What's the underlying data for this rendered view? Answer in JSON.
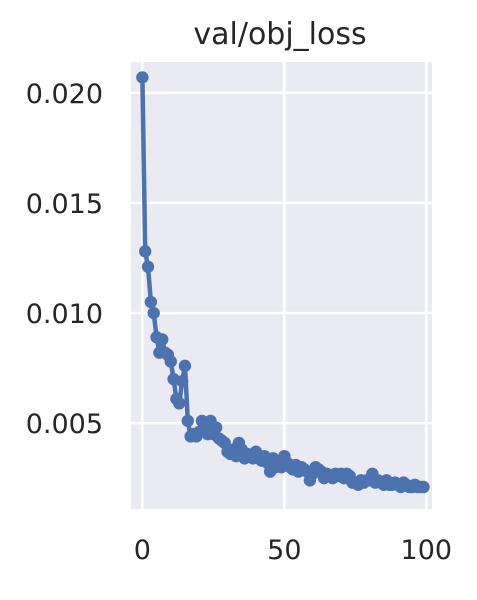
{
  "chart_data": {
    "type": "line",
    "title": "val/obj_loss",
    "xlabel": "",
    "ylabel": "",
    "xlim": [
      -4,
      102
    ],
    "ylim": [
      0.0011,
      0.0214
    ],
    "grid": true,
    "legend": "none",
    "colors": {
      "series": "#4c72b0",
      "plot_background": "#eaeaf2",
      "grid": "#ffffff"
    },
    "x_ticks": [
      0,
      50,
      100
    ],
    "x_tick_labels": [
      "0",
      "50",
      "100"
    ],
    "y_ticks": [
      0.005,
      0.01,
      0.015,
      0.02
    ],
    "y_tick_labels": [
      "0.005",
      "0.010",
      "0.015",
      "0.020"
    ],
    "series": [
      {
        "name": "",
        "x": [
          0,
          1,
          2,
          3,
          4,
          5,
          6,
          7,
          8,
          9,
          10,
          11,
          12,
          13,
          14,
          15,
          16,
          17,
          18,
          19,
          20,
          21,
          22,
          23,
          24,
          25,
          26,
          27,
          28,
          29,
          30,
          31,
          32,
          33,
          34,
          35,
          36,
          37,
          38,
          39,
          40,
          41,
          42,
          43,
          44,
          45,
          46,
          47,
          48,
          49,
          50,
          51,
          52,
          53,
          54,
          55,
          56,
          57,
          58,
          59,
          60,
          61,
          62,
          63,
          64,
          65,
          66,
          67,
          68,
          69,
          70,
          71,
          72,
          73,
          74,
          75,
          76,
          77,
          78,
          79,
          80,
          81,
          82,
          83,
          84,
          85,
          86,
          87,
          88,
          89,
          90,
          91,
          92,
          93,
          94,
          95,
          96,
          97,
          98,
          99
        ],
        "y": [
          0.0207,
          0.0128,
          0.0121,
          0.0105,
          0.01,
          0.0089,
          0.0082,
          0.0088,
          0.0082,
          0.0081,
          0.0078,
          0.007,
          0.0061,
          0.0059,
          0.0069,
          0.0076,
          0.0051,
          0.0044,
          0.0045,
          0.0044,
          0.0046,
          0.0051,
          0.0047,
          0.0045,
          0.0051,
          0.0045,
          0.0048,
          0.0043,
          0.0042,
          0.0041,
          0.0037,
          0.0036,
          0.0038,
          0.0035,
          0.0041,
          0.0038,
          0.0034,
          0.0036,
          0.0035,
          0.0034,
          0.0037,
          0.0034,
          0.0033,
          0.0035,
          0.0032,
          0.0028,
          0.0034,
          0.003,
          0.0031,
          0.003,
          0.0035,
          0.0032,
          0.003,
          0.0029,
          0.0031,
          0.0028,
          0.003,
          0.0029,
          0.0028,
          0.0024,
          0.0027,
          0.003,
          0.0029,
          0.0028,
          0.0025,
          0.0027,
          0.0026,
          0.0025,
          0.0027,
          0.0026,
          0.0027,
          0.0025,
          0.0027,
          0.0026,
          0.0023,
          0.0023,
          0.0022,
          0.0024,
          0.0023,
          0.0024,
          0.0024,
          0.0027,
          0.0023,
          0.0024,
          0.0023,
          0.0022,
          0.0024,
          0.0022,
          0.0022,
          0.0023,
          0.0022,
          0.0021,
          0.0023,
          0.0022,
          0.0021,
          0.0021,
          0.0022,
          0.0021,
          0.0021,
          0.0021
        ]
      }
    ]
  }
}
